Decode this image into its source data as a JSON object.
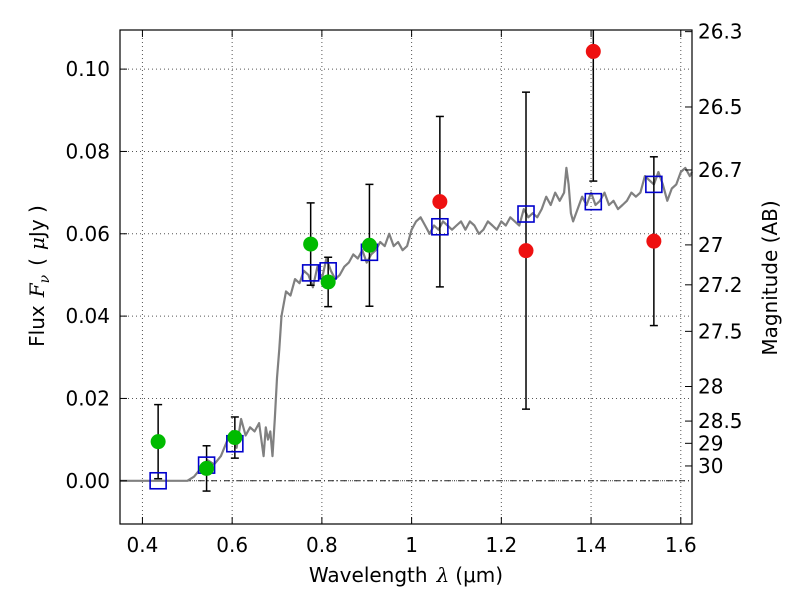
{
  "chart_data": {
    "type": "scatter",
    "xlabel_text": "Wavelength",
    "xlabel_symbol": "λ",
    "xlabel_unit": "(μm)",
    "ylabel_text": "Flux",
    "ylabel_symbol_main": "F",
    "ylabel_symbol_sub": "ν",
    "ylabel_unit_prefix": "(",
    "ylabel_unit_mu": "μ",
    "ylabel_unit_rest": "Jy )",
    "y2label": "Magnitude (AB)",
    "xlim": [
      0.35,
      1.625
    ],
    "ylim": [
      -0.0105,
      0.1095
    ],
    "grid": true,
    "x_ticks": [
      {
        "value": 0.4,
        "label": "0.4"
      },
      {
        "value": 0.6,
        "label": "0.6"
      },
      {
        "value": 0.8,
        "label": "0.8"
      },
      {
        "value": 1.0,
        "label": "1"
      },
      {
        "value": 1.2,
        "label": "1.2"
      },
      {
        "value": 1.4,
        "label": "1.4"
      },
      {
        "value": 1.6,
        "label": "1.6"
      }
    ],
    "y_ticks": [
      {
        "value": 0.0,
        "label": "0.00"
      },
      {
        "value": 0.02,
        "label": "0.02"
      },
      {
        "value": 0.04,
        "label": "0.04"
      },
      {
        "value": 0.06,
        "label": "0.06"
      },
      {
        "value": 0.08,
        "label": "0.08"
      },
      {
        "value": 0.1,
        "label": "0.10"
      }
    ],
    "mag_ticks": [
      {
        "label": "26.3",
        "flux": 0.1091
      },
      {
        "label": "26.5",
        "flux": 0.0908
      },
      {
        "label": "26.7",
        "flux": 0.0755
      },
      {
        "label": "27",
        "flux": 0.0573
      },
      {
        "label": "27.2",
        "flux": 0.0476
      },
      {
        "label": "27.5",
        "flux": 0.0363
      },
      {
        "label": "28",
        "flux": 0.0229
      },
      {
        "label": "28.5",
        "flux": 0.0145
      },
      {
        "label": "29",
        "flux": 0.0091
      },
      {
        "label": "30",
        "flux": 0.0036
      }
    ],
    "sed_model": {
      "x": [
        0.35,
        0.5,
        0.515,
        0.53,
        0.545,
        0.56,
        0.575,
        0.59,
        0.6,
        0.61,
        0.62,
        0.63,
        0.64,
        0.65,
        0.66,
        0.67,
        0.675,
        0.68,
        0.685,
        0.69,
        0.695,
        0.7,
        0.705,
        0.71,
        0.72,
        0.73,
        0.74,
        0.75,
        0.76,
        0.77,
        0.78,
        0.79,
        0.8,
        0.81,
        0.82,
        0.83,
        0.84,
        0.85,
        0.86,
        0.87,
        0.88,
        0.89,
        0.9,
        0.91,
        0.92,
        0.93,
        0.94,
        0.95,
        0.96,
        0.97,
        0.98,
        0.99,
        1.0,
        1.01,
        1.02,
        1.03,
        1.04,
        1.05,
        1.06,
        1.07,
        1.08,
        1.09,
        1.1,
        1.11,
        1.12,
        1.13,
        1.14,
        1.15,
        1.16,
        1.17,
        1.18,
        1.19,
        1.2,
        1.21,
        1.22,
        1.23,
        1.24,
        1.25,
        1.26,
        1.27,
        1.28,
        1.29,
        1.3,
        1.31,
        1.32,
        1.33,
        1.34,
        1.345,
        1.35,
        1.355,
        1.36,
        1.37,
        1.38,
        1.39,
        1.4,
        1.41,
        1.42,
        1.43,
        1.44,
        1.45,
        1.46,
        1.47,
        1.48,
        1.49,
        1.5,
        1.51,
        1.52,
        1.53,
        1.54,
        1.55,
        1.56,
        1.57,
        1.58,
        1.59,
        1.6,
        1.61,
        1.62,
        1.625
      ],
      "y": [
        0.0,
        0.0,
        0.001,
        0.003,
        0.005,
        0.004,
        0.006,
        0.01,
        0.012,
        0.008,
        0.015,
        0.011,
        0.013,
        0.012,
        0.014,
        0.006,
        0.013,
        0.01,
        0.012,
        0.006,
        0.015,
        0.025,
        0.032,
        0.04,
        0.046,
        0.045,
        0.049,
        0.048,
        0.051,
        0.05,
        0.047,
        0.052,
        0.049,
        0.054,
        0.051,
        0.049,
        0.05,
        0.052,
        0.053,
        0.055,
        0.054,
        0.056,
        0.053,
        0.055,
        0.056,
        0.058,
        0.057,
        0.06,
        0.057,
        0.058,
        0.056,
        0.057,
        0.061,
        0.063,
        0.064,
        0.062,
        0.06,
        0.062,
        0.061,
        0.063,
        0.062,
        0.061,
        0.062,
        0.063,
        0.061,
        0.063,
        0.062,
        0.06,
        0.061,
        0.063,
        0.062,
        0.061,
        0.063,
        0.062,
        0.064,
        0.063,
        0.062,
        0.066,
        0.064,
        0.065,
        0.064,
        0.066,
        0.069,
        0.067,
        0.07,
        0.068,
        0.07,
        0.076,
        0.072,
        0.065,
        0.063,
        0.066,
        0.069,
        0.067,
        0.07,
        0.067,
        0.068,
        0.07,
        0.067,
        0.068,
        0.066,
        0.067,
        0.068,
        0.07,
        0.069,
        0.07,
        0.074,
        0.073,
        0.072,
        0.075,
        0.072,
        0.068,
        0.071,
        0.072,
        0.075,
        0.076,
        0.074,
        0.075
      ]
    },
    "model_photometry": {
      "x": [
        0.435,
        0.543,
        0.606,
        0.775,
        0.814,
        0.906,
        1.063,
        1.255,
        1.405,
        1.54
      ],
      "y": [
        0.0,
        0.0038,
        0.009,
        0.0505,
        0.051,
        0.0555,
        0.0617,
        0.0648,
        0.0678,
        0.072
      ]
    },
    "hst_acs_detections": {
      "x": [
        0.435,
        0.543,
        0.606,
        0.775,
        0.814,
        0.906
      ],
      "y": [
        0.0095,
        0.003,
        0.0105,
        0.0575,
        0.0483,
        0.0572
      ],
      "yerr": [
        0.009,
        0.0055,
        0.005,
        0.01,
        0.006,
        0.0148
      ]
    },
    "hst_wfc3_detections": {
      "x": [
        1.063,
        1.255,
        1.405,
        1.54
      ],
      "y": [
        0.0678,
        0.0559,
        0.1043,
        0.0582
      ],
      "yerr": [
        0.0207,
        0.0385,
        0.0315,
        0.0205
      ]
    },
    "colors": {
      "model_line": "#808080",
      "squares": "#0000cc",
      "green": "#00bb00",
      "red": "#ee1111",
      "errorbar": "#000000",
      "grid": "#555555"
    }
  }
}
